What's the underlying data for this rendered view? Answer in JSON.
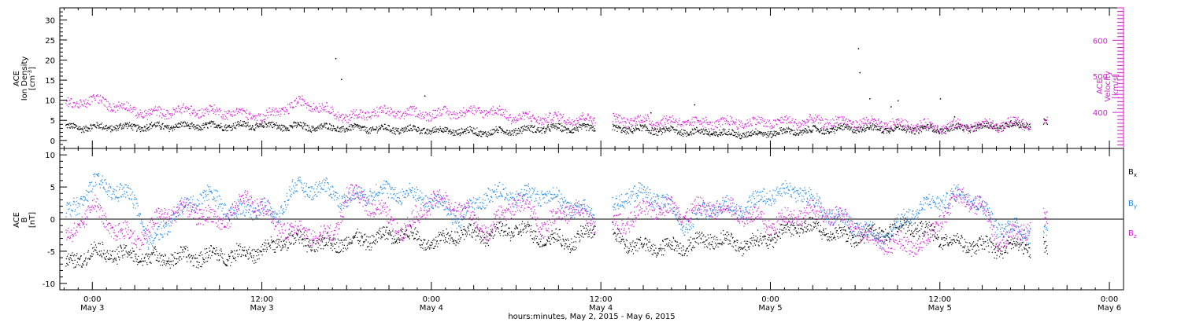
{
  "colors": {
    "black": "#000000",
    "blue": "#1e88e5",
    "magenta": "#d81bd8"
  },
  "chart_data": [
    {
      "type": "scatter",
      "panel": "top",
      "ylabel_left": [
        "ACE",
        "Ion Density",
        "[cm",
        "-3",
        "]"
      ],
      "ylabel_right": [
        "ACE",
        "Velocity",
        "[km/s]"
      ],
      "ylim_left": [
        -2,
        33
      ],
      "yticks_left": [
        0,
        5,
        10,
        15,
        20,
        25,
        30
      ],
      "ylim_right": [
        300,
        690
      ],
      "yticks_right": [
        400,
        500,
        600
      ],
      "xlim_hours": [
        -2.3,
        73.0
      ],
      "series": [
        {
          "role": "density",
          "axis": "left",
          "color": "#000000",
          "trend": [
            [
              -1.5,
              3.2
            ],
            [
              6,
              3.5
            ],
            [
              12,
              3.7
            ],
            [
              18,
              3.0
            ],
            [
              24,
              2.5
            ],
            [
              28,
              2.0
            ],
            [
              32,
              3.0
            ],
            [
              38,
              2.8
            ],
            [
              42,
              2.2
            ],
            [
              46,
              1.5
            ],
            [
              54,
              3.0
            ],
            [
              60,
              2.8
            ],
            [
              64,
              3.6
            ],
            [
              67.5,
              4.2
            ]
          ]
        },
        {
          "role": "velocity",
          "axis": "right",
          "color": "#d81bd8",
          "trend": [
            [
              -1.5,
              420
            ],
            [
              0,
              435
            ],
            [
              2,
              415
            ],
            [
              4,
              395
            ],
            [
              6,
              405
            ],
            [
              10,
              400
            ],
            [
              12,
              385
            ],
            [
              15,
              430
            ],
            [
              18,
              385
            ],
            [
              20,
              400
            ],
            [
              24,
              395
            ],
            [
              28,
              405
            ],
            [
              30,
              385
            ],
            [
              36,
              380
            ],
            [
              44,
              370
            ],
            [
              52,
              375
            ],
            [
              60,
              360
            ],
            [
              64,
              365
            ],
            [
              67.5,
              372
            ]
          ]
        }
      ],
      "outliers": [
        [
          17.2,
          20.5
        ],
        [
          17.6,
          15.3
        ],
        [
          23.5,
          11.2
        ],
        [
          42.6,
          9.0
        ],
        [
          54.2,
          23.0
        ],
        [
          54.3,
          17.0
        ],
        [
          55.0,
          10.5
        ],
        [
          56.5,
          8.5
        ],
        [
          57.0,
          10.0
        ],
        [
          60.0,
          10.5
        ],
        [
          61.0,
          6.0
        ],
        [
          39.5,
          7.0
        ]
      ]
    },
    {
      "type": "scatter",
      "panel": "bottom",
      "ylabel_left": [
        "ACE",
        "B",
        "[nT]"
      ],
      "ylim": [
        -11,
        11
      ],
      "yticks": [
        -10,
        -5,
        0,
        5,
        10
      ],
      "xlim_hours": [
        -2.3,
        73.0
      ],
      "series": [
        {
          "name": "B",
          "sub": "x",
          "color": "#000000",
          "trend": [
            [
              -1.5,
              -7
            ],
            [
              0,
              -5
            ],
            [
              2,
              -5.5
            ],
            [
              4,
              -6
            ],
            [
              6,
              -6
            ],
            [
              8,
              -5.8
            ],
            [
              10,
              -5.5
            ],
            [
              12,
              -5
            ],
            [
              14,
              -3
            ],
            [
              16,
              -4
            ],
            [
              18,
              -3.5
            ],
            [
              20,
              -3
            ],
            [
              22,
              -2
            ],
            [
              24,
              -4
            ],
            [
              26,
              -2
            ],
            [
              28,
              -2.5
            ],
            [
              30,
              -1.5
            ],
            [
              32,
              -3
            ],
            [
              34,
              -3.5
            ],
            [
              36,
              -1
            ],
            [
              38,
              -4
            ],
            [
              40,
              -4.5
            ],
            [
              42,
              -4
            ],
            [
              44,
              -3
            ],
            [
              46,
              -4
            ],
            [
              48,
              -3
            ],
            [
              50,
              -1
            ],
            [
              52,
              -2
            ],
            [
              54,
              -3
            ],
            [
              56,
              -2
            ],
            [
              58,
              -1
            ],
            [
              60,
              -3
            ],
            [
              62,
              -4
            ],
            [
              64,
              -4.5
            ],
            [
              66,
              -4.2
            ],
            [
              67.5,
              -4.5
            ]
          ]
        },
        {
          "name": "B",
          "sub": "y",
          "color": "#1e88e5",
          "trend": [
            [
              -1.5,
              1
            ],
            [
              0,
              5.5
            ],
            [
              1,
              5
            ],
            [
              3,
              3
            ],
            [
              4,
              -4
            ],
            [
              6,
              1
            ],
            [
              8,
              4
            ],
            [
              10,
              1
            ],
            [
              12,
              2
            ],
            [
              13,
              0
            ],
            [
              14,
              4.5
            ],
            [
              16,
              5
            ],
            [
              18,
              3
            ],
            [
              20,
              4.5
            ],
            [
              22,
              4
            ],
            [
              24,
              3
            ],
            [
              26,
              0
            ],
            [
              28,
              4
            ],
            [
              30,
              3.5
            ],
            [
              32,
              4
            ],
            [
              34,
              2
            ],
            [
              36,
              0
            ],
            [
              38,
              4
            ],
            [
              40,
              3.5
            ],
            [
              42,
              -1
            ],
            [
              44,
              2
            ],
            [
              46,
              1.5
            ],
            [
              48,
              4
            ],
            [
              50,
              4.5
            ],
            [
              52,
              1
            ],
            [
              54,
              -1
            ],
            [
              56,
              -3
            ],
            [
              58,
              1
            ],
            [
              60,
              3
            ],
            [
              62,
              4
            ],
            [
              64,
              -1
            ],
            [
              66,
              -2
            ],
            [
              67.5,
              -2
            ]
          ]
        },
        {
          "name": "B",
          "sub": "z",
          "color": "#d81bd8",
          "trend": [
            [
              -1.5,
              -3
            ],
            [
              0,
              2.5
            ],
            [
              1,
              -1
            ],
            [
              3,
              -3
            ],
            [
              4,
              -2
            ],
            [
              5,
              1
            ],
            [
              7,
              1.5
            ],
            [
              9,
              -0.5
            ],
            [
              11,
              3
            ],
            [
              12,
              2
            ],
            [
              13,
              -1
            ],
            [
              15,
              -2
            ],
            [
              17,
              -3
            ],
            [
              18,
              4
            ],
            [
              20,
              2
            ],
            [
              22,
              -2
            ],
            [
              24,
              3
            ],
            [
              26,
              2
            ],
            [
              28,
              -2
            ],
            [
              30,
              3
            ],
            [
              32,
              -1
            ],
            [
              34,
              2
            ],
            [
              36,
              -2
            ],
            [
              38,
              0
            ],
            [
              40,
              2
            ],
            [
              42,
              1
            ],
            [
              44,
              2
            ],
            [
              46,
              1
            ],
            [
              48,
              -1
            ],
            [
              50,
              1
            ],
            [
              52,
              1
            ],
            [
              54,
              -1
            ],
            [
              55,
              -3
            ],
            [
              57,
              -4
            ],
            [
              59,
              -4
            ],
            [
              60,
              0
            ],
            [
              61,
              3
            ],
            [
              62,
              3
            ],
            [
              63,
              2
            ],
            [
              64,
              -3
            ],
            [
              66,
              -2
            ],
            [
              67,
              2
            ],
            [
              67.5,
              0
            ]
          ]
        }
      ],
      "legend_placement": "right"
    }
  ],
  "x_axis": {
    "tick_labels": [
      {
        "hour": 0,
        "time": "0:00",
        "day": "May 3"
      },
      {
        "hour": 12,
        "time": "12:00",
        "day": "May 3"
      },
      {
        "hour": 24,
        "time": "0:00",
        "day": "May 4"
      },
      {
        "hour": 36,
        "time": "12:00",
        "day": "May 4"
      },
      {
        "hour": 48,
        "time": "0:00",
        "day": "May 5"
      },
      {
        "hour": 60,
        "time": "12:00",
        "day": "May 5"
      },
      {
        "hour": 72,
        "time": "0:00",
        "day": "May 6"
      }
    ],
    "title": "hours:minutes,  May  2, 2015 - May  6, 2015",
    "data_gaps": [
      [
        35.6,
        36.8
      ],
      [
        66.4,
        67.3
      ]
    ]
  }
}
